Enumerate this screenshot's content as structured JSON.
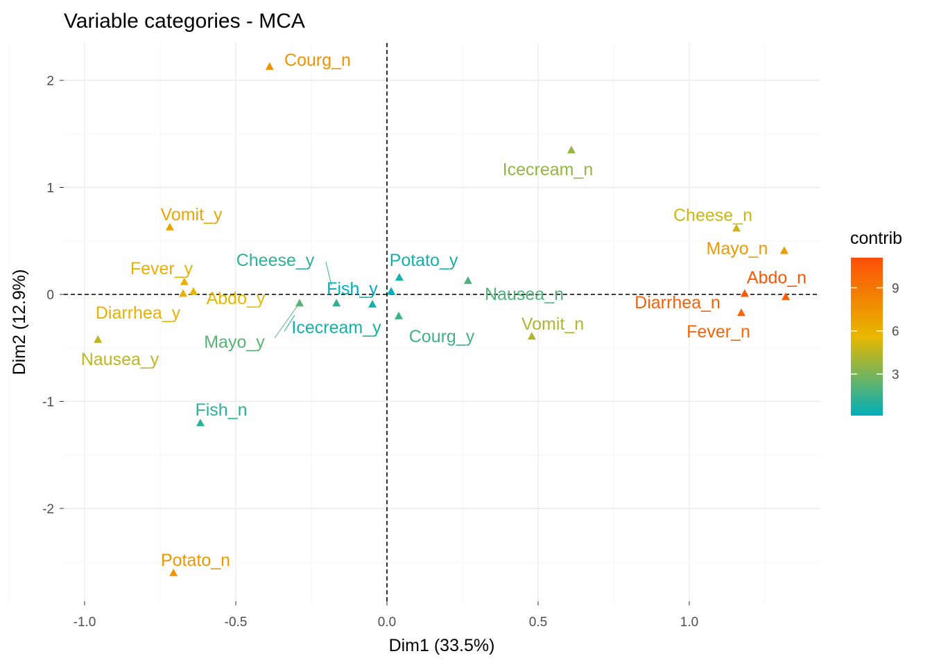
{
  "chart_data": {
    "type": "scatter",
    "title": "Variable categories - MCA",
    "xlabel": "Dim1 (33.5%)",
    "ylabel": "Dim2 (12.9%)",
    "xlim": [
      -1.07,
      1.43
    ],
    "ylim": [
      -2.85,
      2.4
    ],
    "xticks": [
      -1.0,
      -0.5,
      0.0,
      0.5,
      1.0
    ],
    "xtick_labels": [
      "-1.0",
      "-0.5",
      "0.0",
      "0.5",
      "1.0"
    ],
    "yticks": [
      -2,
      -1,
      0,
      1,
      2
    ],
    "ytick_labels": [
      "-2",
      "-1",
      "0",
      "1",
      "2"
    ],
    "grid": true,
    "reference_lines": {
      "x": 0,
      "y": 0
    },
    "legend": {
      "title": "contrib",
      "placement": "right",
      "range": [
        0.1,
        11.1
      ],
      "ticks": [
        3,
        6,
        9
      ],
      "tick_labels": [
        "3",
        "6",
        "9"
      ],
      "colors": [
        "#00AFBB",
        "#E7B800",
        "#FC4E07"
      ]
    },
    "points": [
      {
        "name": "Courg_n",
        "x": -0.388,
        "y": 2.13,
        "contrib": 7.5
      },
      {
        "name": "Icecream_n",
        "x": 0.61,
        "y": 1.35,
        "contrib": 3.6
      },
      {
        "name": "Cheese_n",
        "x": 1.156,
        "y": 0.62,
        "contrib": 5.0
      },
      {
        "name": "Mayo_n",
        "x": 1.314,
        "y": 0.41,
        "contrib": 7.2
      },
      {
        "name": "Abdo_n",
        "x": 1.183,
        "y": 0.01,
        "contrib": 10.6
      },
      {
        "name": "Diarrhea_n",
        "x": 1.319,
        "y": -0.02,
        "contrib": 10.2
      },
      {
        "name": "Fever_n",
        "x": 1.172,
        "y": -0.17,
        "contrib": 10.0
      },
      {
        "name": "Vomit_n",
        "x": 0.479,
        "y": -0.39,
        "contrib": 4.3
      },
      {
        "name": "Nausea_n",
        "x": 0.268,
        "y": 0.13,
        "contrib": 2.0
      },
      {
        "name": "Potato_y",
        "x": 0.041,
        "y": 0.16,
        "contrib": 0.6
      },
      {
        "name": "Fish_y",
        "x": 0.014,
        "y": 0.03,
        "contrib": 0.1
      },
      {
        "name": "Courg_y",
        "x": 0.039,
        "y": -0.2,
        "contrib": 1.6
      },
      {
        "name": "Icecream_y",
        "x": -0.048,
        "y": -0.09,
        "contrib": 0.6
      },
      {
        "name": "Cheese_y",
        "x": -0.167,
        "y": -0.08,
        "contrib": 1.2
      },
      {
        "name": "Mayo_y",
        "x": -0.289,
        "y": -0.08,
        "contrib": 2.2
      },
      {
        "name": "Abdo_y",
        "x": -0.64,
        "y": 0.03,
        "contrib": 5.6
      },
      {
        "name": "Fever_y",
        "x": -0.67,
        "y": 0.12,
        "contrib": 6.0
      },
      {
        "name": "Diarrhea_y",
        "x": -0.674,
        "y": 0.01,
        "contrib": 6.0
      },
      {
        "name": "Vomit_y",
        "x": -0.718,
        "y": 0.63,
        "contrib": 6.6
      },
      {
        "name": "Nausea_y",
        "x": -0.956,
        "y": -0.42,
        "contrib": 4.6
      },
      {
        "name": "Fish_n",
        "x": -0.617,
        "y": -1.2,
        "contrib": 1.1
      },
      {
        "name": "Potato_n",
        "x": -0.706,
        "y": -2.6,
        "contrib": 7.3
      }
    ]
  }
}
